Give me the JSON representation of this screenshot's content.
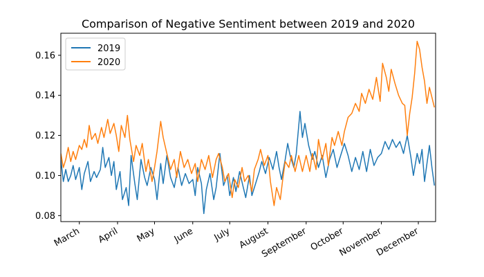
{
  "chart_data": {
    "type": "line",
    "title": "Comparison of Negative Sentiment between 2019 and 2020",
    "xlabel": "",
    "ylabel": "",
    "x_domain": [
      "2020-02-15",
      "2020-12-15"
    ],
    "ylim": [
      0.077,
      0.171
    ],
    "yticks": [
      0.08,
      0.1,
      0.12,
      0.14,
      0.16
    ],
    "ytick_labels": [
      "0.08",
      "0.10",
      "0.12",
      "0.14",
      "0.16"
    ],
    "xticks": [
      "2020-03-01",
      "2020-04-01",
      "2020-05-01",
      "2020-06-01",
      "2020-07-01",
      "2020-08-01",
      "2020-09-01",
      "2020-10-01",
      "2020-11-01",
      "2020-12-01"
    ],
    "xtick_labels": [
      "March",
      "April",
      "May",
      "June",
      "July",
      "August",
      "September",
      "October",
      "November",
      "December"
    ],
    "legend_position": "upper-left",
    "grid": false,
    "series": [
      {
        "name": "2019",
        "color": "#1f77b4",
        "points": [
          [
            "2020-02-15",
            0.108
          ],
          [
            "2020-02-17",
            0.097
          ],
          [
            "2020-02-19",
            0.103
          ],
          [
            "2020-02-21",
            0.097
          ],
          [
            "2020-02-23",
            0.1
          ],
          [
            "2020-02-25",
            0.105
          ],
          [
            "2020-02-27",
            0.098
          ],
          [
            "2020-03-01",
            0.104
          ],
          [
            "2020-03-03",
            0.093
          ],
          [
            "2020-03-05",
            0.101
          ],
          [
            "2020-03-08",
            0.107
          ],
          [
            "2020-03-10",
            0.097
          ],
          [
            "2020-03-13",
            0.102
          ],
          [
            "2020-03-15",
            0.099
          ],
          [
            "2020-03-18",
            0.103
          ],
          [
            "2020-03-20",
            0.114
          ],
          [
            "2020-03-22",
            0.104
          ],
          [
            "2020-03-25",
            0.109
          ],
          [
            "2020-03-27",
            0.1
          ],
          [
            "2020-03-29",
            0.107
          ],
          [
            "2020-03-31",
            0.093
          ],
          [
            "2020-04-03",
            0.102
          ],
          [
            "2020-04-05",
            0.088
          ],
          [
            "2020-04-08",
            0.094
          ],
          [
            "2020-04-10",
            0.085
          ],
          [
            "2020-04-12",
            0.11
          ],
          [
            "2020-04-15",
            0.096
          ],
          [
            "2020-04-17",
            0.088
          ],
          [
            "2020-04-20",
            0.108
          ],
          [
            "2020-04-23",
            0.099
          ],
          [
            "2020-04-25",
            0.095
          ],
          [
            "2020-04-28",
            0.104
          ],
          [
            "2020-05-01",
            0.098
          ],
          [
            "2020-05-03",
            0.088
          ],
          [
            "2020-05-06",
            0.106
          ],
          [
            "2020-05-08",
            0.096
          ],
          [
            "2020-05-11",
            0.11
          ],
          [
            "2020-05-14",
            0.099
          ],
          [
            "2020-05-17",
            0.094
          ],
          [
            "2020-05-20",
            0.104
          ],
          [
            "2020-05-23",
            0.095
          ],
          [
            "2020-05-26",
            0.101
          ],
          [
            "2020-05-29",
            0.096
          ],
          [
            "2020-06-01",
            0.098
          ],
          [
            "2020-06-03",
            0.09
          ],
          [
            "2020-06-05",
            0.104
          ],
          [
            "2020-06-08",
            0.096
          ],
          [
            "2020-06-10",
            0.081
          ],
          [
            "2020-06-12",
            0.093
          ],
          [
            "2020-06-15",
            0.101
          ],
          [
            "2020-06-18",
            0.088
          ],
          [
            "2020-06-20",
            0.094
          ],
          [
            "2020-06-23",
            0.111
          ],
          [
            "2020-06-26",
            0.095
          ],
          [
            "2020-06-29",
            0.1
          ],
          [
            "2020-07-01",
            0.09
          ],
          [
            "2020-07-04",
            0.099
          ],
          [
            "2020-07-06",
            0.092
          ],
          [
            "2020-07-09",
            0.102
          ],
          [
            "2020-07-12",
            0.094
          ],
          [
            "2020-07-14",
            0.089
          ],
          [
            "2020-07-17",
            0.1
          ],
          [
            "2020-07-19",
            0.09
          ],
          [
            "2020-07-22",
            0.096
          ],
          [
            "2020-07-25",
            0.102
          ],
          [
            "2020-07-27",
            0.107
          ],
          [
            "2020-07-30",
            0.101
          ],
          [
            "2020-08-02",
            0.109
          ],
          [
            "2020-08-05",
            0.103
          ],
          [
            "2020-08-08",
            0.112
          ],
          [
            "2020-08-10",
            0.104
          ],
          [
            "2020-08-12",
            0.098
          ],
          [
            "2020-08-15",
            0.108
          ],
          [
            "2020-08-17",
            0.116
          ],
          [
            "2020-08-19",
            0.11
          ],
          [
            "2020-08-22",
            0.104
          ],
          [
            "2020-08-24",
            0.111
          ],
          [
            "2020-08-27",
            0.132
          ],
          [
            "2020-08-29",
            0.119
          ],
          [
            "2020-08-31",
            0.126
          ],
          [
            "2020-09-03",
            0.115
          ],
          [
            "2020-09-06",
            0.108
          ],
          [
            "2020-09-08",
            0.112
          ],
          [
            "2020-09-11",
            0.104
          ],
          [
            "2020-09-14",
            0.11
          ],
          [
            "2020-09-17",
            0.099
          ],
          [
            "2020-09-20",
            0.108
          ],
          [
            "2020-09-23",
            0.113
          ],
          [
            "2020-09-26",
            0.104
          ],
          [
            "2020-09-29",
            0.11
          ],
          [
            "2020-10-02",
            0.116
          ],
          [
            "2020-10-05",
            0.11
          ],
          [
            "2020-10-08",
            0.102
          ],
          [
            "2020-10-11",
            0.109
          ],
          [
            "2020-10-14",
            0.103
          ],
          [
            "2020-10-17",
            0.112
          ],
          [
            "2020-10-20",
            0.102
          ],
          [
            "2020-10-23",
            0.113
          ],
          [
            "2020-10-26",
            0.105
          ],
          [
            "2020-10-29",
            0.109
          ],
          [
            "2020-11-01",
            0.111
          ],
          [
            "2020-11-04",
            0.117
          ],
          [
            "2020-11-07",
            0.113
          ],
          [
            "2020-11-10",
            0.118
          ],
          [
            "2020-11-13",
            0.114
          ],
          [
            "2020-11-16",
            0.117
          ],
          [
            "2020-11-19",
            0.111
          ],
          [
            "2020-11-22",
            0.12
          ],
          [
            "2020-11-25",
            0.109
          ],
          [
            "2020-11-27",
            0.1
          ],
          [
            "2020-11-30",
            0.111
          ],
          [
            "2020-12-02",
            0.106
          ],
          [
            "2020-12-04",
            0.113
          ],
          [
            "2020-12-06",
            0.097
          ],
          [
            "2020-12-08",
            0.106
          ],
          [
            "2020-12-10",
            0.115
          ],
          [
            "2020-12-12",
            0.104
          ],
          [
            "2020-12-14",
            0.095
          ]
        ]
      },
      {
        "name": "2020",
        "color": "#ff7f0e",
        "points": [
          [
            "2020-02-15",
            0.111
          ],
          [
            "2020-02-17",
            0.104
          ],
          [
            "2020-02-19",
            0.108
          ],
          [
            "2020-02-21",
            0.114
          ],
          [
            "2020-02-23",
            0.107
          ],
          [
            "2020-02-25",
            0.112
          ],
          [
            "2020-02-27",
            0.108
          ],
          [
            "2020-03-01",
            0.115
          ],
          [
            "2020-03-03",
            0.113
          ],
          [
            "2020-03-05",
            0.118
          ],
          [
            "2020-03-07",
            0.114
          ],
          [
            "2020-03-09",
            0.125
          ],
          [
            "2020-03-11",
            0.118
          ],
          [
            "2020-03-14",
            0.121
          ],
          [
            "2020-03-16",
            0.116
          ],
          [
            "2020-03-19",
            0.124
          ],
          [
            "2020-03-21",
            0.119
          ],
          [
            "2020-03-24",
            0.128
          ],
          [
            "2020-03-26",
            0.121
          ],
          [
            "2020-03-29",
            0.126
          ],
          [
            "2020-03-31",
            0.12
          ],
          [
            "2020-04-02",
            0.112
          ],
          [
            "2020-04-04",
            0.125
          ],
          [
            "2020-04-07",
            0.119
          ],
          [
            "2020-04-09",
            0.13
          ],
          [
            "2020-04-11",
            0.118
          ],
          [
            "2020-04-14",
            0.107
          ],
          [
            "2020-04-16",
            0.115
          ],
          [
            "2020-04-19",
            0.11
          ],
          [
            "2020-04-21",
            0.116
          ],
          [
            "2020-04-24",
            0.102
          ],
          [
            "2020-04-26",
            0.108
          ],
          [
            "2020-04-29",
            0.097
          ],
          [
            "2020-05-01",
            0.104
          ],
          [
            "2020-05-03",
            0.112
          ],
          [
            "2020-05-06",
            0.127
          ],
          [
            "2020-05-08",
            0.119
          ],
          [
            "2020-05-11",
            0.111
          ],
          [
            "2020-05-14",
            0.103
          ],
          [
            "2020-05-17",
            0.108
          ],
          [
            "2020-05-19",
            0.099
          ],
          [
            "2020-05-22",
            0.112
          ],
          [
            "2020-05-25",
            0.104
          ],
          [
            "2020-05-28",
            0.108
          ],
          [
            "2020-05-31",
            0.101
          ],
          [
            "2020-06-03",
            0.106
          ],
          [
            "2020-06-05",
            0.097
          ],
          [
            "2020-06-08",
            0.108
          ],
          [
            "2020-06-11",
            0.103
          ],
          [
            "2020-06-14",
            0.11
          ],
          [
            "2020-06-17",
            0.099
          ],
          [
            "2020-06-20",
            0.108
          ],
          [
            "2020-06-22",
            0.111
          ],
          [
            "2020-06-25",
            0.104
          ],
          [
            "2020-06-27",
            0.097
          ],
          [
            "2020-06-30",
            0.101
          ],
          [
            "2020-07-03",
            0.089
          ],
          [
            "2020-07-05",
            0.098
          ],
          [
            "2020-07-08",
            0.094
          ],
          [
            "2020-07-11",
            0.104
          ],
          [
            "2020-07-13",
            0.097
          ],
          [
            "2020-07-16",
            0.1
          ],
          [
            "2020-07-19",
            0.092
          ],
          [
            "2020-07-21",
            0.103
          ],
          [
            "2020-07-24",
            0.108
          ],
          [
            "2020-07-26",
            0.113
          ],
          [
            "2020-07-29",
            0.105
          ],
          [
            "2020-08-01",
            0.11
          ],
          [
            "2020-08-03",
            0.097
          ],
          [
            "2020-08-06",
            0.085
          ],
          [
            "2020-08-08",
            0.094
          ],
          [
            "2020-08-11",
            0.088
          ],
          [
            "2020-08-13",
            0.098
          ],
          [
            "2020-08-15",
            0.107
          ],
          [
            "2020-08-18",
            0.104
          ],
          [
            "2020-08-20",
            0.11
          ],
          [
            "2020-08-23",
            0.102
          ],
          [
            "2020-08-26",
            0.11
          ],
          [
            "2020-08-29",
            0.102
          ],
          [
            "2020-09-01",
            0.11
          ],
          [
            "2020-09-04",
            0.102
          ],
          [
            "2020-09-06",
            0.111
          ],
          [
            "2020-09-09",
            0.103
          ],
          [
            "2020-09-11",
            0.118
          ],
          [
            "2020-09-14",
            0.108
          ],
          [
            "2020-09-17",
            0.116
          ],
          [
            "2020-09-19",
            0.105
          ],
          [
            "2020-09-22",
            0.119
          ],
          [
            "2020-09-24",
            0.115
          ],
          [
            "2020-09-27",
            0.122
          ],
          [
            "2020-09-30",
            0.115
          ],
          [
            "2020-10-02",
            0.122
          ],
          [
            "2020-10-05",
            0.129
          ],
          [
            "2020-10-08",
            0.131
          ],
          [
            "2020-10-11",
            0.136
          ],
          [
            "2020-10-14",
            0.132
          ],
          [
            "2020-10-16",
            0.141
          ],
          [
            "2020-10-19",
            0.136
          ],
          [
            "2020-10-22",
            0.143
          ],
          [
            "2020-10-25",
            0.138
          ],
          [
            "2020-10-28",
            0.149
          ],
          [
            "2020-10-31",
            0.137
          ],
          [
            "2020-11-02",
            0.156
          ],
          [
            "2020-11-05",
            0.149
          ],
          [
            "2020-11-07",
            0.142
          ],
          [
            "2020-11-09",
            0.153
          ],
          [
            "2020-11-12",
            0.146
          ],
          [
            "2020-11-15",
            0.14
          ],
          [
            "2020-11-18",
            0.136
          ],
          [
            "2020-11-20",
            0.135
          ],
          [
            "2020-11-22",
            0.12
          ],
          [
            "2020-11-24",
            0.131
          ],
          [
            "2020-11-26",
            0.139
          ],
          [
            "2020-11-28",
            0.151
          ],
          [
            "2020-11-30",
            0.167
          ],
          [
            "2020-12-02",
            0.163
          ],
          [
            "2020-12-04",
            0.154
          ],
          [
            "2020-12-06",
            0.147
          ],
          [
            "2020-12-08",
            0.136
          ],
          [
            "2020-12-10",
            0.144
          ],
          [
            "2020-12-12",
            0.139
          ],
          [
            "2020-12-14",
            0.134
          ]
        ]
      }
    ]
  }
}
